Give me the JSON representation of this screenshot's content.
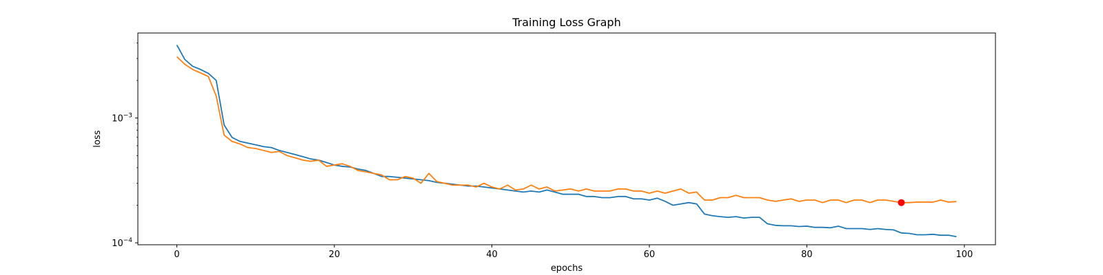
{
  "chart_data": {
    "type": "line",
    "title": "Training Loss Graph",
    "xlabel": "epochs",
    "ylabel": "loss",
    "x_axis": {
      "scale": "linear",
      "range": [
        -4.95,
        103.95
      ],
      "ticks": [
        0,
        20,
        40,
        60,
        80,
        100
      ],
      "tick_labels": [
        "0",
        "20",
        "40",
        "60",
        "80",
        "100"
      ]
    },
    "y_axis": {
      "scale": "log",
      "range": [
        9.65e-05,
        0.0048
      ],
      "major_ticks": [
        0.0001,
        0.001
      ],
      "major_tick_labels": [
        {
          "base": "10",
          "exp": "−4"
        },
        {
          "base": "10",
          "exp": "−3"
        }
      ]
    },
    "grid": false,
    "legend": "none",
    "colors": {
      "series_1": "#1f77b4",
      "series_2": "#ff7f0e",
      "marker": "#ff0000"
    },
    "x": [
      0,
      1,
      2,
      3,
      4,
      5,
      6,
      7,
      8,
      9,
      10,
      11,
      12,
      13,
      14,
      15,
      16,
      17,
      18,
      19,
      20,
      21,
      22,
      23,
      24,
      25,
      26,
      27,
      28,
      29,
      30,
      31,
      32,
      33,
      34,
      35,
      36,
      37,
      38,
      39,
      40,
      41,
      42,
      43,
      44,
      45,
      46,
      47,
      48,
      49,
      50,
      51,
      52,
      53,
      54,
      55,
      56,
      57,
      58,
      59,
      60,
      61,
      62,
      63,
      64,
      65,
      66,
      67,
      68,
      69,
      70,
      71,
      72,
      73,
      74,
      75,
      76,
      77,
      78,
      79,
      80,
      81,
      82,
      83,
      84,
      85,
      86,
      87,
      88,
      89,
      90,
      91,
      92,
      93,
      94,
      95,
      96,
      97,
      98,
      99
    ],
    "series": [
      {
        "color": "#1f77b4",
        "values": [
          0.00385,
          0.00295,
          0.0026,
          0.00245,
          0.00228,
          0.002,
          0.00088,
          0.0007,
          0.00065,
          0.00063,
          0.00061,
          0.00059,
          0.00058,
          0.00055,
          0.00053,
          0.00051,
          0.00049,
          0.00047,
          0.00046,
          0.00044,
          0.00042,
          0.00041,
          0.000405,
          0.00039,
          0.00038,
          0.00036,
          0.00034,
          0.00034,
          0.000335,
          0.00033,
          0.000325,
          0.00032,
          0.000315,
          0.000305,
          0.0003,
          0.000295,
          0.00029,
          0.000285,
          0.000285,
          0.00028,
          0.000275,
          0.00027,
          0.000265,
          0.00026,
          0.000255,
          0.00026,
          0.000255,
          0.000265,
          0.000255,
          0.000245,
          0.000245,
          0.000245,
          0.000235,
          0.000235,
          0.00023,
          0.00023,
          0.000235,
          0.000235,
          0.000225,
          0.000225,
          0.00022,
          0.000228,
          0.000215,
          0.0002,
          0.000205,
          0.00021,
          0.000205,
          0.00017,
          0.000165,
          0.000162,
          0.00016,
          0.000162,
          0.000158,
          0.00016,
          0.00016,
          0.000142,
          0.000138,
          0.000137,
          0.000137,
          0.000135,
          0.000136,
          0.000133,
          0.000133,
          0.000132,
          0.000136,
          0.00013,
          0.00013,
          0.00013,
          0.000128,
          0.00013,
          0.000128,
          0.000127,
          0.00012,
          0.000119,
          0.000116,
          0.000116,
          0.000117,
          0.000115,
          0.000115,
          0.000112
        ]
      },
      {
        "color": "#ff7f0e",
        "values": [
          0.0031,
          0.0027,
          0.00245,
          0.0023,
          0.00215,
          0.0015,
          0.00073,
          0.00065,
          0.00062,
          0.00058,
          0.00057,
          0.00055,
          0.00053,
          0.00054,
          0.0005,
          0.00048,
          0.00046,
          0.00045,
          0.00046,
          0.00041,
          0.00042,
          0.00043,
          0.00041,
          0.00038,
          0.00037,
          0.00036,
          0.00035,
          0.00032,
          0.00032,
          0.00034,
          0.00033,
          0.0003,
          0.00036,
          0.00031,
          0.0003,
          0.00029,
          0.00029,
          0.00029,
          0.00028,
          0.0003,
          0.00028,
          0.00027,
          0.00029,
          0.000265,
          0.00027,
          0.00029,
          0.00027,
          0.00028,
          0.00026,
          0.000265,
          0.00027,
          0.00026,
          0.00027,
          0.00026,
          0.00026,
          0.00026,
          0.00027,
          0.00027,
          0.00026,
          0.00026,
          0.00025,
          0.00026,
          0.00025,
          0.00026,
          0.00027,
          0.00025,
          0.000255,
          0.00022,
          0.00022,
          0.00023,
          0.00023,
          0.00024,
          0.00023,
          0.00023,
          0.00023,
          0.00022,
          0.000215,
          0.00022,
          0.000225,
          0.000215,
          0.00022,
          0.00022,
          0.00021,
          0.00022,
          0.00022,
          0.00021,
          0.00022,
          0.00022,
          0.00021,
          0.00022,
          0.00022,
          0.000215,
          0.00021,
          0.00021,
          0.000212,
          0.000212,
          0.000212,
          0.00022,
          0.000212,
          0.000214
        ]
      }
    ],
    "highlight_point": {
      "x": 92,
      "y": 0.00021,
      "color": "#ff0000"
    }
  }
}
